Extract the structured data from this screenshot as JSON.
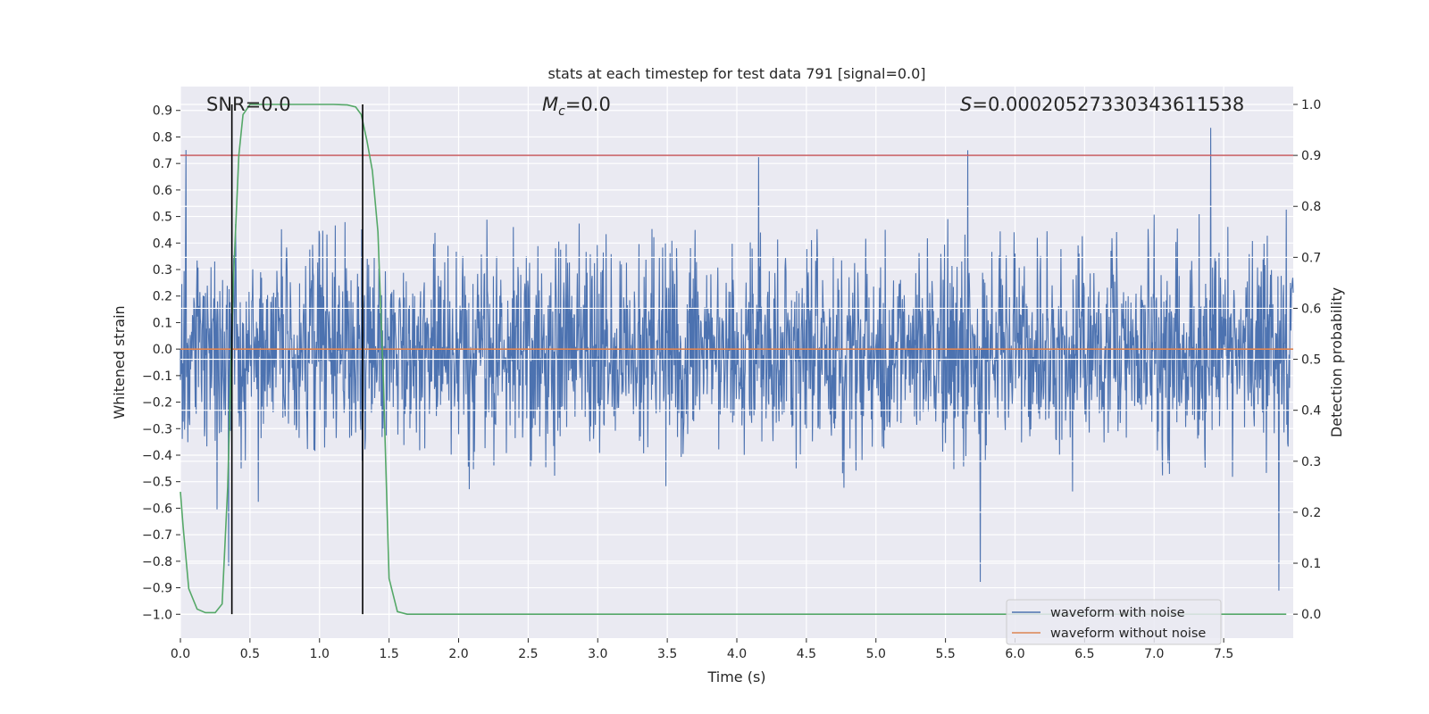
{
  "chart_data": {
    "type": "line",
    "title": "stats at each timestep for test data 791 [signal=0.0]",
    "xlabel": "Time (s)",
    "ylabel": "Whitened strain",
    "y2label": "Detection probability",
    "xlim": [
      0.0,
      8.0
    ],
    "ylim": [
      -1.09,
      0.99
    ],
    "y2lim": [
      -0.047,
      1.035
    ],
    "x_ticks": [
      0.0,
      0.5,
      1.0,
      1.5,
      2.0,
      2.5,
      3.0,
      3.5,
      4.0,
      4.5,
      5.0,
      5.5,
      6.0,
      6.5,
      7.0,
      7.5
    ],
    "x_tick_labels": [
      "0.0",
      "0.5",
      "1.0",
      "1.5",
      "2.0",
      "2.5",
      "3.0",
      "3.5",
      "4.0",
      "4.5",
      "5.0",
      "5.5",
      "6.0",
      "6.5",
      "7.0",
      "7.5"
    ],
    "y_ticks": [
      0.9,
      0.8,
      0.7,
      0.6,
      0.5,
      0.4,
      0.3,
      0.2,
      0.1,
      0.0,
      -0.1,
      -0.2,
      -0.3,
      -0.4,
      -0.5,
      -0.6,
      -0.7,
      -0.8,
      -0.9,
      -1.0
    ],
    "y_tick_labels": [
      "0.9",
      "0.8",
      "0.7",
      "0.6",
      "0.5",
      "0.4",
      "0.3",
      "0.2",
      "0.1",
      "0.0",
      "−0.1",
      "−0.2",
      "−0.3",
      "−0.4",
      "−0.5",
      "−0.6",
      "−0.7",
      "−0.8",
      "−0.9",
      "−1.0"
    ],
    "y2_ticks": [
      1.0,
      0.9,
      0.8,
      0.7,
      0.6,
      0.5,
      0.4,
      0.3,
      0.2,
      0.1,
      0.0
    ],
    "y2_tick_labels": [
      "1.0",
      "0.9",
      "0.8",
      "0.7",
      "0.6",
      "0.5",
      "0.4",
      "0.3",
      "0.2",
      "0.1",
      "0.0"
    ],
    "grid": true,
    "annotations": {
      "snr": "SNR=0.0",
      "mc_symbol": "M",
      "mc_subscript": "c",
      "mc_value": "=0.0",
      "s_symbol": "S",
      "s_value": "=0.00020527330343611538"
    },
    "series": [
      {
        "name": "waveform with noise",
        "color": "#4c72b0",
        "kind": "noise",
        "x_range": [
          0.0,
          8.0
        ],
        "envelope_typical": [
          -0.45,
          0.45
        ],
        "envelope_extreme": [
          -1.0,
          0.9
        ]
      },
      {
        "name": "waveform without noise",
        "color": "#dd8452",
        "x": [
          0.0,
          8.0
        ],
        "y": [
          0.0,
          0.0
        ]
      },
      {
        "name": "detection probability",
        "color": "#55a868",
        "axis": "right",
        "x": [
          0.0,
          0.02,
          0.06,
          0.12,
          0.18,
          0.25,
          0.3,
          0.34,
          0.38,
          0.42,
          0.45,
          0.5,
          0.6,
          0.8,
          1.0,
          1.1,
          1.2,
          1.26,
          1.3,
          1.34,
          1.38,
          1.42,
          1.46,
          1.5,
          1.56,
          1.63,
          1.8,
          2.5,
          3.5,
          4.5,
          5.5,
          6.5,
          7.5,
          7.95
        ],
        "y": [
          0.24,
          0.17,
          0.05,
          0.01,
          0.003,
          0.003,
          0.02,
          0.25,
          0.65,
          0.9,
          0.98,
          1.0,
          1.0,
          1.0,
          1.0,
          1.0,
          0.999,
          0.995,
          0.98,
          0.93,
          0.87,
          0.75,
          0.45,
          0.07,
          0.005,
          0.0,
          0.0,
          0.0,
          0.0,
          0.0,
          0.0,
          0.0,
          0.0,
          0.0
        ],
        "label": ""
      }
    ],
    "threshold": {
      "value": 0.9,
      "axis": "right",
      "color": "#c44e52"
    },
    "vertical_markers": {
      "x": [
        0.37,
        1.31
      ],
      "color": "#000000"
    },
    "legend": {
      "position": "bottom-right",
      "entries": [
        "waveform with noise",
        "waveform without noise"
      ]
    }
  }
}
